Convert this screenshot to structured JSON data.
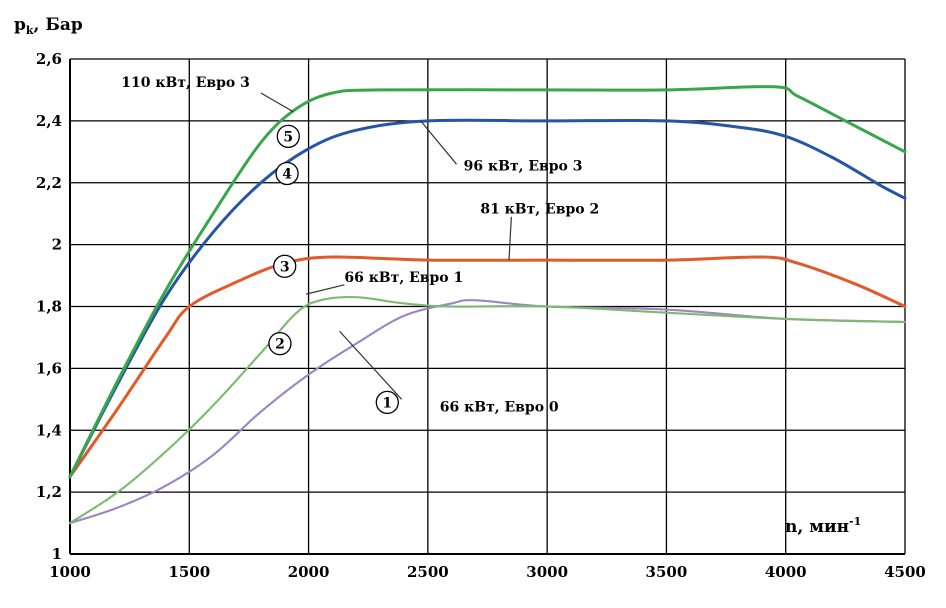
{
  "chart_data": {
    "type": "line",
    "ylabel": "p",
    "ylabel_sub": "k",
    "ylabel_unit": ", Бар",
    "xlabel": "n, мин",
    "xlabel_sup": "-1",
    "xlim": [
      1000,
      4500
    ],
    "ylim": [
      1.0,
      2.6
    ],
    "x_ticks": [
      1000,
      1500,
      2000,
      2500,
      3000,
      3500,
      4000,
      4500
    ],
    "y_ticks": [
      1,
      1.2,
      1.4,
      1.6,
      1.8,
      2,
      2.2,
      2.4,
      2.6
    ],
    "x_tick_labels": [
      "1000",
      "1500",
      "2000",
      "2500",
      "3000",
      "3500",
      "4000",
      "4500"
    ],
    "y_tick_labels": [
      "1",
      "1,2",
      "1,4",
      "1,6",
      "1,8",
      "2",
      "2,2",
      "2,4",
      "2,6"
    ],
    "grid": true,
    "series": [
      {
        "marker": "1",
        "name": "66 кВт, Евро 0",
        "color": "#9a86c4",
        "style": "dotted",
        "points": [
          [
            1000,
            1.1
          ],
          [
            1200,
            1.15
          ],
          [
            1400,
            1.22
          ],
          [
            1600,
            1.32
          ],
          [
            1800,
            1.46
          ],
          [
            2000,
            1.58
          ],
          [
            2200,
            1.68
          ],
          [
            2400,
            1.77
          ],
          [
            2600,
            1.81
          ],
          [
            2700,
            1.82
          ],
          [
            3000,
            1.8
          ],
          [
            3500,
            1.79
          ],
          [
            4000,
            1.76
          ],
          [
            4500,
            1.75
          ]
        ]
      },
      {
        "marker": "2",
        "name": "66 кВт, Евро 1",
        "color": "#7fb870",
        "style": "dotted",
        "points": [
          [
            1000,
            1.1
          ],
          [
            1200,
            1.2
          ],
          [
            1400,
            1.33
          ],
          [
            1600,
            1.48
          ],
          [
            1800,
            1.65
          ],
          [
            1950,
            1.78
          ],
          [
            2050,
            1.82
          ],
          [
            2200,
            1.83
          ],
          [
            2400,
            1.81
          ],
          [
            2600,
            1.8
          ],
          [
            3000,
            1.8
          ],
          [
            3500,
            1.78
          ],
          [
            4000,
            1.76
          ],
          [
            4500,
            1.75
          ]
        ]
      },
      {
        "marker": "3",
        "name": "81 кВт, Евро 2",
        "color": "#e05a2b",
        "style": "solid",
        "points": [
          [
            1000,
            1.25
          ],
          [
            1200,
            1.47
          ],
          [
            1400,
            1.7
          ],
          [
            1500,
            1.8
          ],
          [
            1700,
            1.88
          ],
          [
            1900,
            1.94
          ],
          [
            2100,
            1.96
          ],
          [
            2500,
            1.95
          ],
          [
            3000,
            1.95
          ],
          [
            3500,
            1.95
          ],
          [
            3900,
            1.96
          ],
          [
            4050,
            1.94
          ],
          [
            4300,
            1.87
          ],
          [
            4500,
            1.8
          ]
        ]
      },
      {
        "marker": "4",
        "name": "96 кВт, Евро 3",
        "color": "#2456a5",
        "style": "solid",
        "points": [
          [
            1000,
            1.25
          ],
          [
            1200,
            1.55
          ],
          [
            1400,
            1.83
          ],
          [
            1600,
            2.04
          ],
          [
            1800,
            2.2
          ],
          [
            2000,
            2.31
          ],
          [
            2200,
            2.37
          ],
          [
            2500,
            2.4
          ],
          [
            3000,
            2.4
          ],
          [
            3500,
            2.4
          ],
          [
            3800,
            2.38
          ],
          [
            4000,
            2.35
          ],
          [
            4200,
            2.28
          ],
          [
            4400,
            2.19
          ],
          [
            4500,
            2.15
          ]
        ]
      },
      {
        "marker": "5",
        "name": "110 кВт, Евро 3",
        "color": "#3aa64a",
        "style": "solid",
        "points": [
          [
            1000,
            1.25
          ],
          [
            1200,
            1.56
          ],
          [
            1400,
            1.85
          ],
          [
            1600,
            2.1
          ],
          [
            1800,
            2.33
          ],
          [
            1950,
            2.44
          ],
          [
            2100,
            2.49
          ],
          [
            2300,
            2.5
          ],
          [
            3000,
            2.5
          ],
          [
            3500,
            2.5
          ],
          [
            3950,
            2.51
          ],
          [
            4050,
            2.48
          ],
          [
            4250,
            2.4
          ],
          [
            4500,
            2.3
          ]
        ]
      }
    ]
  }
}
